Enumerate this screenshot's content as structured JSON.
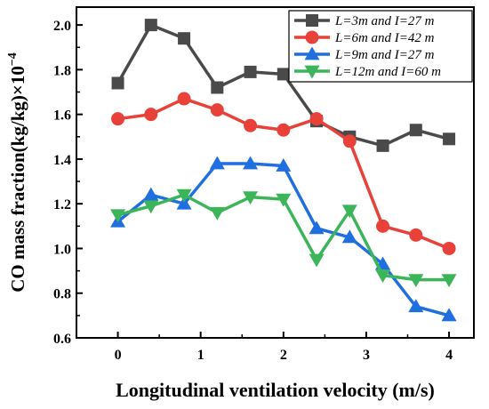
{
  "chart_data": {
    "type": "line",
    "title": "",
    "xlabel": "Longitudinal ventilation velocity (m/s)",
    "ylabel": "CO mass fraction(kg/kg)×10",
    "ylabel_exponent": "−4",
    "xlim": [
      -0.5,
      4.3
    ],
    "ylim": [
      0.6,
      2.08
    ],
    "xticks": [
      0,
      1,
      2,
      3,
      4
    ],
    "yticks": [
      0.6,
      0.8,
      1.0,
      1.2,
      1.4,
      1.6,
      1.8,
      2.0
    ],
    "xtick_labels": [
      "0",
      "1",
      "2",
      "3",
      "4"
    ],
    "ytick_labels": [
      "0.6",
      "0.8",
      "1.0",
      "1.2",
      "1.4",
      "1.6",
      "1.8",
      "2.0"
    ],
    "grid": false,
    "legend_position": "top-right",
    "x": [
      0,
      0.4,
      0.8,
      1.2,
      1.6,
      2.0,
      2.4,
      2.8,
      3.2,
      3.6,
      4.0
    ],
    "series": [
      {
        "name": "L=3m and I=27 m",
        "color": "#4a4a4a",
        "marker": "square",
        "values": [
          1.74,
          2.0,
          1.94,
          1.72,
          1.79,
          1.78,
          1.57,
          1.5,
          1.46,
          1.53,
          1.49
        ]
      },
      {
        "name": "L=6m and I=42 m",
        "color": "#e8413a",
        "marker": "circle",
        "values": [
          1.58,
          1.6,
          1.67,
          1.62,
          1.55,
          1.53,
          1.58,
          1.48,
          1.1,
          1.06,
          1.0
        ]
      },
      {
        "name": "L=9m and I=27 m",
        "color": "#1f6fe0",
        "marker": "triangle-up",
        "values": [
          1.12,
          1.24,
          1.2,
          1.38,
          1.38,
          1.37,
          1.09,
          1.05,
          0.93,
          0.74,
          0.7
        ]
      },
      {
        "name": "L=12m and I=60 m",
        "color": "#3cb55a",
        "marker": "triangle-down",
        "values": [
          1.15,
          1.19,
          1.24,
          1.16,
          1.23,
          1.22,
          0.95,
          1.17,
          0.88,
          0.86,
          0.86
        ]
      }
    ]
  }
}
